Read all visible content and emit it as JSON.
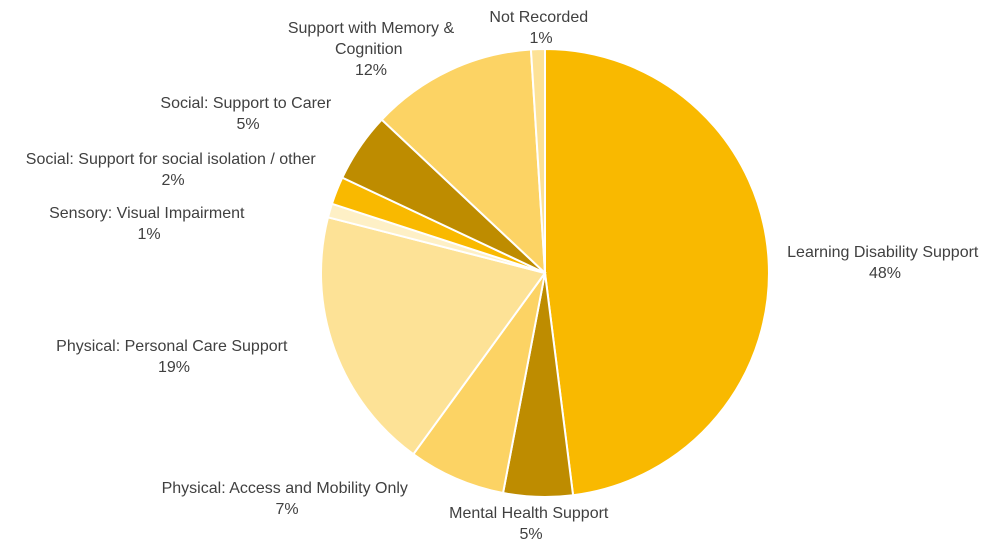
{
  "chart_data": {
    "type": "pie",
    "title": "",
    "start_angle_deg": 0,
    "direction": "clockwise",
    "slices": [
      {
        "label": "Learning Disability Support",
        "value": 48,
        "pct_label": "48%",
        "color": "#F9B900"
      },
      {
        "label": "Mental Health Support",
        "value": 5,
        "pct_label": "5%",
        "color": "#BE8C00"
      },
      {
        "label": "Physical: Access and Mobility Only",
        "value": 7,
        "pct_label": "7%",
        "color": "#FCD364"
      },
      {
        "label": "Physical: Personal Care Support",
        "value": 19,
        "pct_label": "19%",
        "color": "#FDE296"
      },
      {
        "label": "Sensory: Visual Impairment",
        "value": 1,
        "pct_label": "1%",
        "color": "#FEF0C6"
      },
      {
        "label": "Social: Support for social isolation / other",
        "value": 2,
        "pct_label": "2%",
        "color": "#F9B900"
      },
      {
        "label": "Social: Support to Carer",
        "value": 5,
        "pct_label": "5%",
        "color": "#BE8C00"
      },
      {
        "label": "Support with Memory & Cognition",
        "value": 12,
        "pct_label": "12%",
        "color": "#FCD364"
      },
      {
        "label": "Not Recorded",
        "value": 1,
        "pct_label": "1%",
        "color": "#FDE296"
      }
    ]
  }
}
